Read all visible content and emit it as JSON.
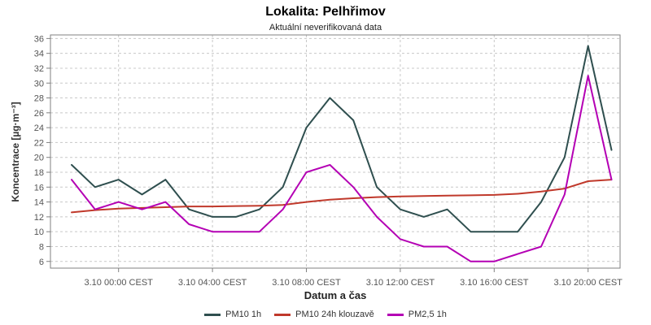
{
  "title": "Lokalita: Pelhřimov",
  "subtitle": "Aktuální neverifikovaná data",
  "chart_data": {
    "type": "line",
    "title": "Lokalita: Pelhřimov",
    "subtitle": "Aktuální neverifikovaná data",
    "xlabel": "Datum a čas",
    "ylabel": "Koncentrace [µg·m⁻³]",
    "grid": true,
    "legend_position": "bottom",
    "y_axis": {
      "ticks": [
        36,
        34,
        32,
        30,
        28,
        26,
        24,
        22,
        20,
        18,
        16,
        14,
        12,
        10,
        8,
        6
      ],
      "min": 5.1,
      "max": 36.5
    },
    "x_axis": {
      "tick_labels": [
        "3.10 00:00 CEST",
        "3.10 04:00 CEST",
        "3.10 08:00 CEST",
        "3.10 12:00 CEST",
        "3.10 16:00 CEST",
        "3.10 20:00 CEST"
      ],
      "tick_hours": [
        0,
        4,
        8,
        12,
        16,
        20
      ],
      "start_hour_offset": -2
    },
    "times": [
      "2.10 22:00",
      "2.10 23:00",
      "3.10 00:00",
      "3.10 01:00",
      "3.10 02:00",
      "3.10 03:00",
      "3.10 04:00",
      "3.10 05:00",
      "3.10 06:00",
      "3.10 07:00",
      "3.10 08:00",
      "3.10 09:00",
      "3.10 10:00",
      "3.10 11:00",
      "3.10 12:00",
      "3.10 13:00",
      "3.10 14:00",
      "3.10 15:00",
      "3.10 16:00",
      "3.10 17:00",
      "3.10 18:00",
      "3.10 19:00",
      "3.10 20:00",
      "3.10 21:00"
    ],
    "series": [
      {
        "name": "PM10 1h",
        "color": "#2F4F4F",
        "values": [
          19,
          16,
          17,
          15,
          17,
          13,
          12,
          12,
          13,
          16,
          24,
          28,
          25,
          16,
          13,
          12,
          13,
          10,
          10,
          10,
          14,
          20,
          35,
          21
        ]
      },
      {
        "name": "PM10 24h klouzavě",
        "color": "#C0392B",
        "values": [
          12.6,
          12.9,
          13.1,
          13.2,
          13.3,
          13.4,
          13.4,
          13.45,
          13.5,
          13.6,
          14.0,
          14.3,
          14.5,
          14.65,
          14.75,
          14.8,
          14.85,
          14.9,
          14.95,
          15.1,
          15.4,
          15.8,
          16.8,
          17.0
        ]
      },
      {
        "name": "PM2,5 1h",
        "color": "#B400B4",
        "values": [
          17,
          13,
          14,
          13,
          14,
          11,
          10,
          10,
          10,
          13,
          18,
          19,
          16,
          12,
          9,
          8,
          8,
          6,
          6,
          7,
          8,
          15,
          31,
          17
        ]
      }
    ],
    "colors": {
      "grid": "#C8C8C8",
      "axis_border": "#808080",
      "tick_label": "#555555"
    }
  }
}
